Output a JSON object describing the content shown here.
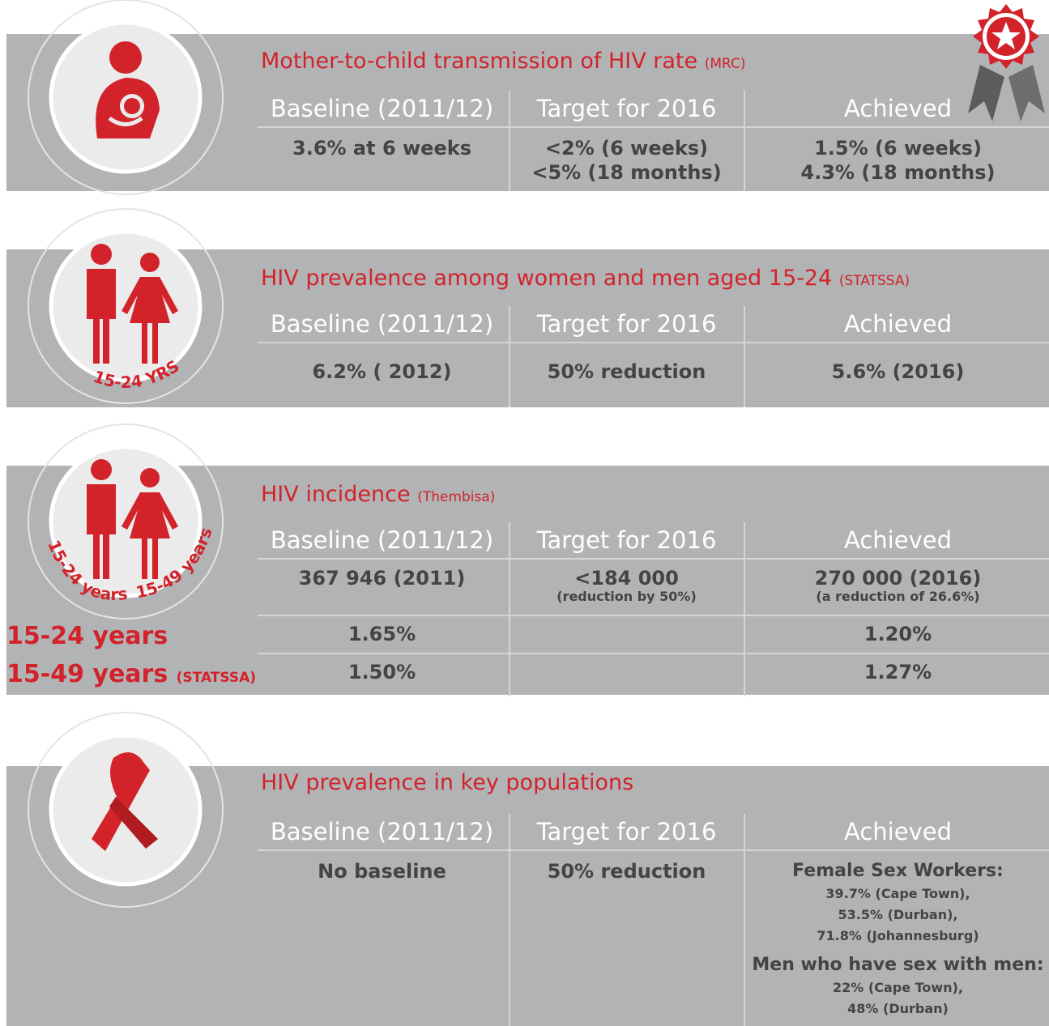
{
  "sections": [
    {
      "title": "Mother-to-child transmission of HIV rate",
      "source": "(MRC)",
      "headers": [
        "Baseline (2011/12)",
        "Target for 2016",
        "Achieved"
      ],
      "baseline": [
        "3.6% at 6 weeks"
      ],
      "target": [
        "<2% (6 weeks)",
        "<5% (18 months)"
      ],
      "achieved": [
        "1.5% (6 weeks)",
        "4.3% (18 months)"
      ]
    },
    {
      "title": "HIV prevalence among women and men aged 15-24",
      "source": "(STATSSA)",
      "icon_label": "15-24 YRS",
      "headers": [
        "Baseline (2011/12)",
        "Target for 2016",
        "Achieved"
      ],
      "baseline": "6.2% ( 2012)",
      "target": "50% reduction",
      "achieved": "5.6% (2016)"
    },
    {
      "title": "HIV incidence",
      "source": "(Thembisa)",
      "icon_labels": [
        "15-24 years",
        "15-49 years"
      ],
      "headers": [
        "Baseline (2011/12)",
        "Target for 2016",
        "Achieved"
      ],
      "baseline": "367 946 (2011)",
      "target": {
        "main": "<184 000",
        "note": "(reduction by 50%)"
      },
      "achieved": {
        "main": "270 000 (2016)",
        "note": "(a reduction of 26.6%)"
      },
      "subrows": [
        {
          "label": "15-24 years",
          "baseline": "1.65%",
          "achieved": "1.20%"
        },
        {
          "label": "15-49 years",
          "source": "(STATSSA)",
          "baseline": "1.50%",
          "achieved": "1.27%"
        }
      ]
    },
    {
      "title": "HIV prevalence in key populations",
      "headers": [
        "Baseline (2011/12)",
        "Target for 2016",
        "Achieved"
      ],
      "baseline": "No baseline",
      "target": "50% reduction",
      "achieved": [
        {
          "label": "Female Sex Workers:",
          "items": [
            "39.7% (Cape Town),",
            "53.5% (Durban),",
            "71.8% (Johannesburg)"
          ]
        },
        {
          "label": "Men who have sex with men:",
          "items": [
            "22% (Cape Town),",
            "48% (Durban)"
          ]
        }
      ]
    }
  ]
}
